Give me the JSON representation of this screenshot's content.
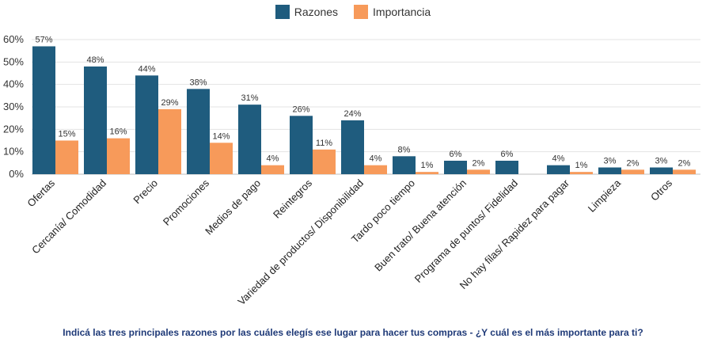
{
  "chart_data": {
    "type": "bar",
    "categories": [
      "Ofertas",
      "Cercanía/ Comodidad",
      "Precio",
      "Promociones",
      "Medios de pago",
      "Reintegros",
      "Variedad de productos/ Disponibilidad",
      "Tardo poco tiempo",
      "Buen trato/ Buena atención",
      "Programa de puntos/ Fidelidad",
      "No hay filas/ Rapidez para pagar",
      "Limpieza",
      "Otros"
    ],
    "series": [
      {
        "name": "Razones",
        "color": "#1f5c7e",
        "values": [
          57,
          48,
          44,
          38,
          31,
          26,
          24,
          8,
          6,
          6,
          4,
          3,
          3
        ],
        "labels": [
          "57%",
          "48%",
          "44%",
          "38%",
          "31%",
          "26%",
          "24%",
          "8%",
          "6%",
          "6%",
          "4%",
          "3%",
          "3%"
        ]
      },
      {
        "name": "Importancia",
        "color": "#f79a5a",
        "values": [
          15,
          16,
          29,
          14,
          4,
          11,
          4,
          1,
          2,
          0,
          1,
          2,
          2
        ],
        "labels": [
          "15%",
          "16%",
          "29%",
          "14%",
          "4%",
          "11%",
          "4%",
          "1%",
          "2%",
          "",
          "1%",
          "2%",
          "2%"
        ]
      }
    ],
    "ylim": [
      0,
      60
    ],
    "yticks": [
      0,
      10,
      20,
      30,
      40,
      50,
      60
    ],
    "ytick_labels": [
      "0%",
      "10%",
      "20%",
      "30%",
      "40%",
      "50%",
      "60%"
    ],
    "grid": true,
    "legend_position": "top-center"
  },
  "caption": "Indicá las tres principales razones por las cuáles elegís ese lugar para hacer tus compras - ¿Y cuál es el más importante para ti?"
}
